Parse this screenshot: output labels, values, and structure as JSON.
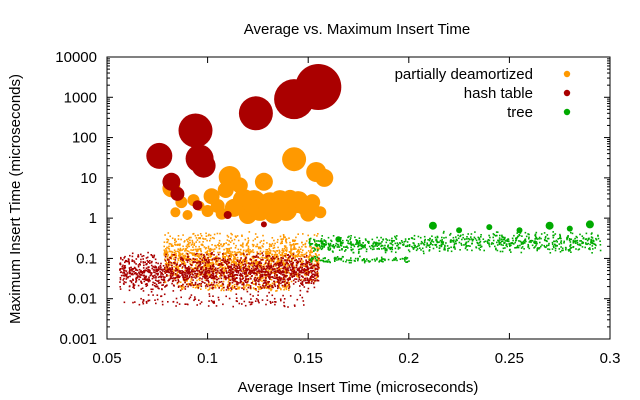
{
  "chart_data": {
    "type": "scatter",
    "title": "Average vs. Maximum Insert Time",
    "xlabel": "Average Insert Time (microseconds)",
    "ylabel": "Maximum Insert Time (microseconds)",
    "xlim": [
      0.05,
      0.3
    ],
    "ylim": [
      0.001,
      10000
    ],
    "yscale": "log",
    "grid": false,
    "legend_position": "top-right",
    "x_ticks": [
      {
        "value": 0.05,
        "label": "0.05"
      },
      {
        "value": 0.1,
        "label": "0.1"
      },
      {
        "value": 0.15,
        "label": "0.15"
      },
      {
        "value": 0.2,
        "label": "0.2"
      },
      {
        "value": 0.25,
        "label": "0.25"
      },
      {
        "value": 0.3,
        "label": "0.3"
      }
    ],
    "y_ticks": [
      {
        "value": 0.001,
        "label": "0.001"
      },
      {
        "value": 0.01,
        "label": "0.01"
      },
      {
        "value": 0.1,
        "label": "0.1"
      },
      {
        "value": 1,
        "label": "1"
      },
      {
        "value": 10,
        "label": "10"
      },
      {
        "value": 100,
        "label": "100"
      },
      {
        "value": 1000,
        "label": "1000"
      },
      {
        "value": 10000,
        "label": "10000"
      }
    ],
    "series": [
      {
        "name": "partially deamortized",
        "color": "#ff9900",
        "dense_clusters": [
          {
            "x_range": [
              0.078,
              0.155
            ],
            "y_range": [
              0.02,
              0.5
            ],
            "count": 1500
          },
          {
            "x_range": [
              0.085,
              0.14
            ],
            "y_range": [
              0.015,
              0.03
            ],
            "count": 150
          }
        ],
        "points": [
          {
            "x": 0.082,
            "y": 5.5,
            "size": 9
          },
          {
            "x": 0.084,
            "y": 1.4,
            "size": 5
          },
          {
            "x": 0.087,
            "y": 2.5,
            "size": 6
          },
          {
            "x": 0.09,
            "y": 1.2,
            "size": 5
          },
          {
            "x": 0.093,
            "y": 2.8,
            "size": 6
          },
          {
            "x": 0.096,
            "y": 2.0,
            "size": 5
          },
          {
            "x": 0.1,
            "y": 1.5,
            "size": 6
          },
          {
            "x": 0.102,
            "y": 3.5,
            "size": 8
          },
          {
            "x": 0.105,
            "y": 2.0,
            "size": 7
          },
          {
            "x": 0.107,
            "y": 1.3,
            "size": 6
          },
          {
            "x": 0.109,
            "y": 5.0,
            "size": 8
          },
          {
            "x": 0.111,
            "y": 10.5,
            "size": 11
          },
          {
            "x": 0.113,
            "y": 1.8,
            "size": 9
          },
          {
            "x": 0.116,
            "y": 6.5,
            "size": 8
          },
          {
            "x": 0.118,
            "y": 2.8,
            "size": 11
          },
          {
            "x": 0.12,
            "y": 1.2,
            "size": 9
          },
          {
            "x": 0.123,
            "y": 2.5,
            "size": 12
          },
          {
            "x": 0.126,
            "y": 1.6,
            "size": 11
          },
          {
            "x": 0.128,
            "y": 8.0,
            "size": 9
          },
          {
            "x": 0.131,
            "y": 2.2,
            "size": 12
          },
          {
            "x": 0.133,
            "y": 1.3,
            "size": 10
          },
          {
            "x": 0.136,
            "y": 2.8,
            "size": 10
          },
          {
            "x": 0.139,
            "y": 1.6,
            "size": 11
          },
          {
            "x": 0.141,
            "y": 3.0,
            "size": 9
          },
          {
            "x": 0.143,
            "y": 29,
            "size": 12
          },
          {
            "x": 0.145,
            "y": 2.5,
            "size": 11
          },
          {
            "x": 0.148,
            "y": 2.0,
            "size": 9
          },
          {
            "x": 0.15,
            "y": 1.3,
            "size": 8
          },
          {
            "x": 0.152,
            "y": 2.5,
            "size": 8
          },
          {
            "x": 0.154,
            "y": 14,
            "size": 10
          },
          {
            "x": 0.156,
            "y": 1.4,
            "size": 6
          },
          {
            "x": 0.158,
            "y": 10,
            "size": 9
          }
        ]
      },
      {
        "name": "hash table",
        "color": "#aa0000",
        "dense_clusters": [
          {
            "x_range": [
              0.056,
              0.155
            ],
            "y_range": [
              0.015,
              0.15
            ],
            "count": 1600
          },
          {
            "x_range": [
              0.058,
              0.15
            ],
            "y_range": [
              0.006,
              0.015
            ],
            "count": 120
          }
        ],
        "points": [
          {
            "x": 0.076,
            "y": 35,
            "size": 13
          },
          {
            "x": 0.082,
            "y": 8.0,
            "size": 9
          },
          {
            "x": 0.085,
            "y": 4.0,
            "size": 7
          },
          {
            "x": 0.094,
            "y": 150,
            "size": 17
          },
          {
            "x": 0.096,
            "y": 30,
            "size": 14
          },
          {
            "x": 0.098,
            "y": 20,
            "size": 12
          },
          {
            "x": 0.095,
            "y": 2.1,
            "size": 5
          },
          {
            "x": 0.11,
            "y": 1.2,
            "size": 4
          },
          {
            "x": 0.124,
            "y": 400,
            "size": 17
          },
          {
            "x": 0.128,
            "y": 0.7,
            "size": 3
          },
          {
            "x": 0.143,
            "y": 900,
            "size": 20
          },
          {
            "x": 0.155,
            "y": 1800,
            "size": 23
          }
        ]
      },
      {
        "name": "tree",
        "color": "#00aa00",
        "dense_clusters": [
          {
            "x_range": [
              0.15,
              0.21
            ],
            "y_range": [
              0.13,
              0.4
            ],
            "count": 350
          },
          {
            "x_range": [
              0.21,
              0.295
            ],
            "y_range": [
              0.14,
              0.5
            ],
            "count": 500
          },
          {
            "x_range": [
              0.15,
              0.2
            ],
            "y_range": [
              0.08,
              0.12
            ],
            "count": 120
          }
        ],
        "points": [
          {
            "x": 0.165,
            "y": 0.3,
            "size": 3
          },
          {
            "x": 0.212,
            "y": 0.65,
            "size": 4
          },
          {
            "x": 0.225,
            "y": 0.5,
            "size": 3
          },
          {
            "x": 0.24,
            "y": 0.6,
            "size": 3
          },
          {
            "x": 0.255,
            "y": 0.5,
            "size": 3
          },
          {
            "x": 0.27,
            "y": 0.65,
            "size": 4
          },
          {
            "x": 0.28,
            "y": 0.55,
            "size": 3
          },
          {
            "x": 0.29,
            "y": 0.7,
            "size": 4
          }
        ]
      }
    ]
  }
}
